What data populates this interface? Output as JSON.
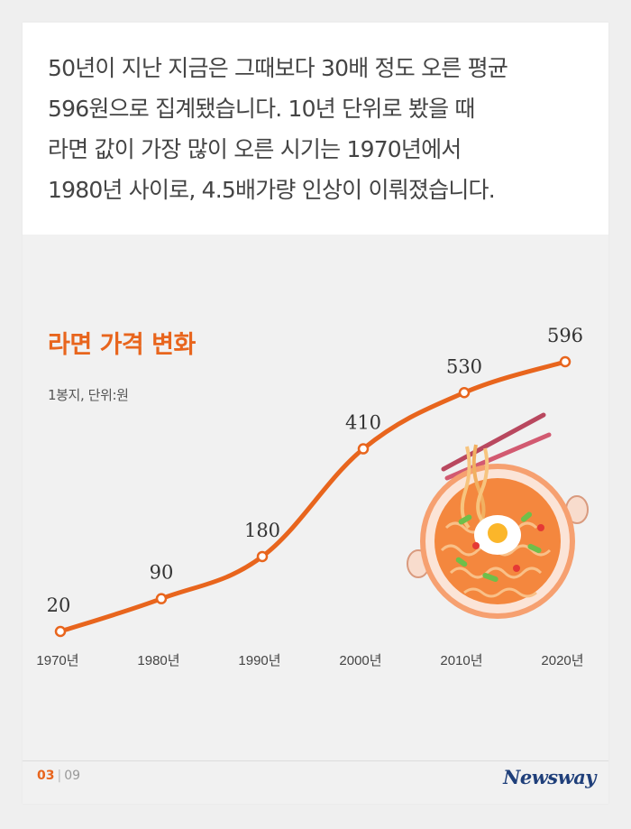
{
  "paragraph": {
    "lines": [
      "50년이 지난 지금은 그때보다 30배 정도 오른 평균",
      "596원으로 집계됐습니다. 10년 단위로 봤을 때",
      "라면 값이 가장 많이 오른 시기는 1970년에서",
      "1980년 사이로, 4.5배가량 인상이 이뤄졌습니다."
    ]
  },
  "chart_data": {
    "type": "line",
    "title": "라면 가격 변화",
    "unit_note": "1봉지, 단위:원",
    "categories": [
      "1970년",
      "1980년",
      "1990년",
      "2000년",
      "2010년",
      "2020년"
    ],
    "values": [
      20,
      90,
      180,
      410,
      530,
      596
    ],
    "data_labels": [
      "20",
      "90",
      "180",
      "410",
      "530",
      "596"
    ],
    "ylim": [
      0,
      650
    ],
    "grid": false,
    "line_color": "#e8651d",
    "marker_fill": "#ffffff"
  },
  "footer": {
    "page_current": "03",
    "separator": "|",
    "page_total": "09",
    "logo": "Newsway"
  },
  "colors": {
    "accent": "#e8651d",
    "brand": "#1f3f7a"
  }
}
